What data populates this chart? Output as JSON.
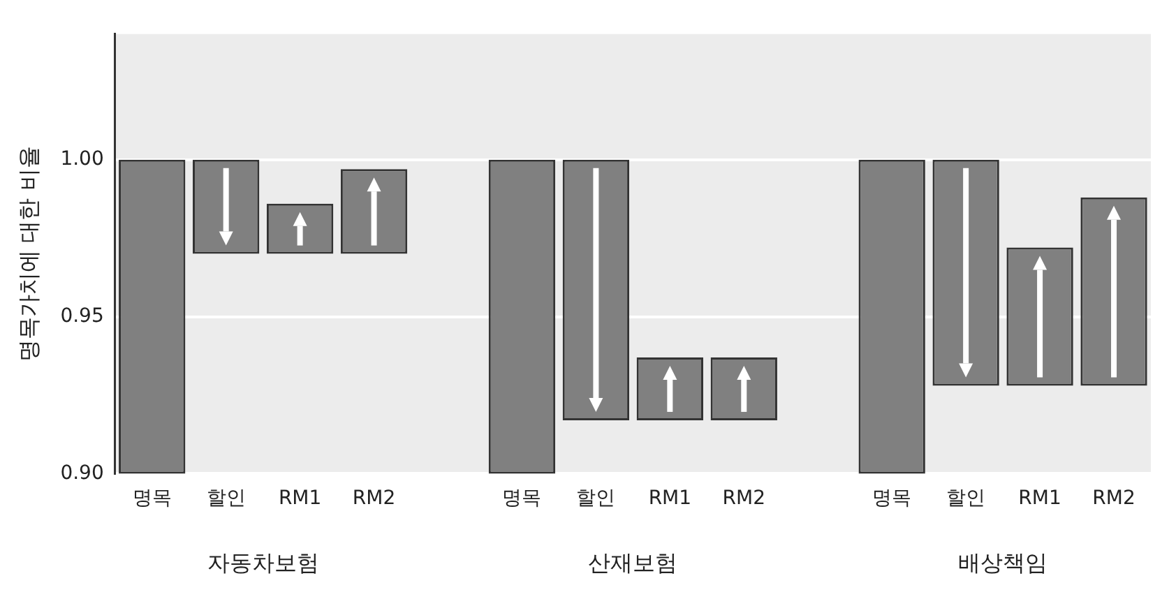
{
  "chart_data": {
    "type": "bar",
    "ylabel": "명목가치에 대한 비율",
    "categories": [
      "명목",
      "할인",
      "RM1",
      "RM2",
      null,
      "명목",
      "할인",
      "RM1",
      "RM2",
      null,
      "명목",
      "할인",
      "RM1",
      "RM2"
    ],
    "base": [
      0.9,
      0.97,
      0.97,
      0.97,
      null,
      0.9,
      0.917,
      0.917,
      0.917,
      null,
      0.9,
      0.928,
      0.928,
      0.928
    ],
    "values": [
      0.1,
      0.03,
      0.016,
      0.027,
      null,
      0.1,
      0.083,
      0.02,
      0.02,
      null,
      0.1,
      0.072,
      0.044,
      0.06
    ],
    "color": "#808080",
    "ylim": [
      0.9,
      1.04
    ],
    "yticks": [
      {
        "value": 0.9,
        "label": "0.90"
      },
      {
        "value": 0.95,
        "label": "0.95"
      },
      {
        "value": 1.0,
        "label": "1.00"
      }
    ],
    "grid": "y",
    "annotations": [
      "자동차보험",
      "산재보험",
      "배상책임"
    ]
  }
}
